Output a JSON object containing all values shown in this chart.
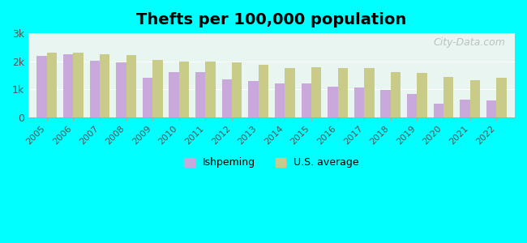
{
  "title": "Thefts per 100,000 population",
  "years": [
    2005,
    2006,
    2007,
    2008,
    2009,
    2010,
    2011,
    2012,
    2013,
    2014,
    2015,
    2016,
    2017,
    2018,
    2019,
    2020,
    2021,
    2022
  ],
  "ishpeming": [
    2200,
    2250,
    2020,
    1950,
    1420,
    1600,
    1620,
    1340,
    1290,
    1220,
    1220,
    1100,
    1070,
    990,
    840,
    490,
    640,
    600
  ],
  "us_average": [
    2300,
    2300,
    2240,
    2220,
    2060,
    1990,
    1980,
    1960,
    1880,
    1770,
    1790,
    1760,
    1750,
    1620,
    1590,
    1440,
    1320,
    1400
  ],
  "ishpeming_color": "#c9a8dc",
  "us_average_color": "#c8cc88",
  "background_color": "#00ffff",
  "plot_bg_top": "#e8f5f0",
  "plot_bg_bottom": "#f5f5e8",
  "ylim": [
    0,
    3000
  ],
  "yticks": [
    0,
    1000,
    2000,
    3000
  ],
  "ytick_labels": [
    "0",
    "1k",
    "2k",
    "3k"
  ],
  "bar_width": 0.38,
  "legend_ishpeming": "Ishpeming",
  "legend_us": "U.S. average",
  "watermark": "City-Data.com"
}
